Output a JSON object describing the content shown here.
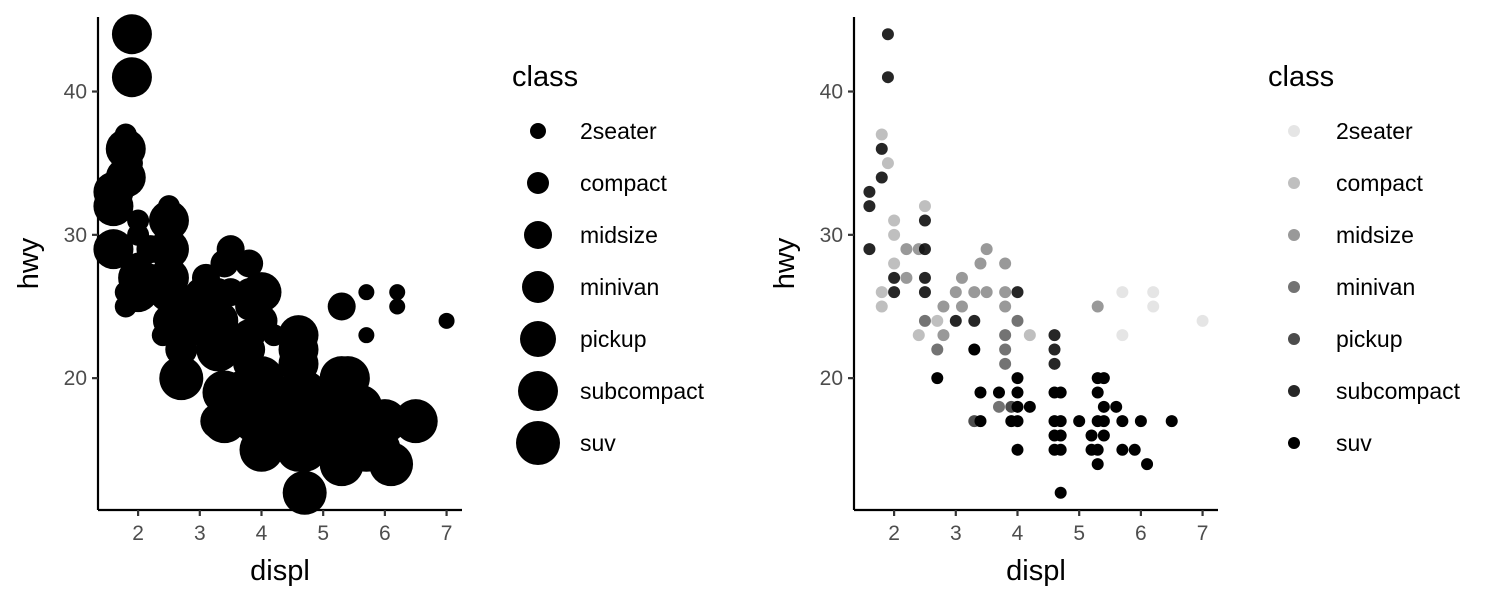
{
  "chart_data": [
    {
      "type": "scatter",
      "title": "",
      "xlabel": "displ",
      "ylabel": "hwy",
      "xlim": [
        1.35,
        7.25
      ],
      "ylim": [
        10.8,
        45.2
      ],
      "xticks": [
        2,
        3,
        4,
        5,
        6,
        7
      ],
      "yticks": [
        20,
        30,
        40
      ],
      "grid": false,
      "size_by": "class",
      "legend": {
        "title": "class",
        "position": "right",
        "entries": [
          "2seater",
          "compact",
          "midsize",
          "minivan",
          "pickup",
          "subcompact",
          "suv"
        ]
      },
      "color": "#000000",
      "points": [
        {
          "x": 1.9,
          "y": 44,
          "class": "subcompact"
        },
        {
          "x": 1.9,
          "y": 41,
          "class": "subcompact"
        },
        {
          "x": 1.8,
          "y": 37,
          "class": "compact"
        },
        {
          "x": 1.8,
          "y": 36,
          "class": "subcompact"
        },
        {
          "x": 1.9,
          "y": 35,
          "class": "compact"
        },
        {
          "x": 1.8,
          "y": 34,
          "class": "subcompact"
        },
        {
          "x": 1.6,
          "y": 33,
          "class": "subcompact"
        },
        {
          "x": 1.6,
          "y": 32,
          "class": "subcompact"
        },
        {
          "x": 2.0,
          "y": 31,
          "class": "compact"
        },
        {
          "x": 2.5,
          "y": 32,
          "class": "compact"
        },
        {
          "x": 2.5,
          "y": 31,
          "class": "subcompact"
        },
        {
          "x": 1.6,
          "y": 29,
          "class": "subcompact"
        },
        {
          "x": 2.0,
          "y": 30,
          "class": "compact"
        },
        {
          "x": 2.4,
          "y": 29,
          "class": "midsize"
        },
        {
          "x": 2.2,
          "y": 29,
          "class": "midsize"
        },
        {
          "x": 2.5,
          "y": 29,
          "class": "subcompact"
        },
        {
          "x": 3.5,
          "y": 29,
          "class": "midsize"
        },
        {
          "x": 2.0,
          "y": 28,
          "class": "compact"
        },
        {
          "x": 3.4,
          "y": 28,
          "class": "midsize"
        },
        {
          "x": 3.8,
          "y": 28,
          "class": "midsize"
        },
        {
          "x": 2.0,
          "y": 27,
          "class": "subcompact"
        },
        {
          "x": 2.2,
          "y": 27,
          "class": "midsize"
        },
        {
          "x": 2.5,
          "y": 27,
          "class": "subcompact"
        },
        {
          "x": 3.1,
          "y": 27,
          "class": "midsize"
        },
        {
          "x": 1.8,
          "y": 26,
          "class": "compact"
        },
        {
          "x": 2.0,
          "y": 26,
          "class": "subcompact"
        },
        {
          "x": 2.5,
          "y": 26,
          "class": "subcompact"
        },
        {
          "x": 3.0,
          "y": 26,
          "class": "midsize"
        },
        {
          "x": 3.3,
          "y": 26,
          "class": "midsize"
        },
        {
          "x": 3.5,
          "y": 26,
          "class": "midsize"
        },
        {
          "x": 3.8,
          "y": 26,
          "class": "midsize"
        },
        {
          "x": 4.0,
          "y": 26,
          "class": "subcompact"
        },
        {
          "x": 5.7,
          "y": 26,
          "class": "2seater"
        },
        {
          "x": 6.2,
          "y": 26,
          "class": "2seater"
        },
        {
          "x": 1.8,
          "y": 25,
          "class": "compact"
        },
        {
          "x": 2.8,
          "y": 25,
          "class": "midsize"
        },
        {
          "x": 3.1,
          "y": 25,
          "class": "midsize"
        },
        {
          "x": 3.8,
          "y": 25,
          "class": "midsize"
        },
        {
          "x": 5.3,
          "y": 25,
          "class": "midsize"
        },
        {
          "x": 6.2,
          "y": 25,
          "class": "2seater"
        },
        {
          "x": 2.5,
          "y": 24,
          "class": "minivan"
        },
        {
          "x": 2.7,
          "y": 24,
          "class": "compact"
        },
        {
          "x": 3.0,
          "y": 24,
          "class": "subcompact"
        },
        {
          "x": 3.3,
          "y": 24,
          "class": "subcompact"
        },
        {
          "x": 4.0,
          "y": 24,
          "class": "minivan"
        },
        {
          "x": 7.0,
          "y": 24,
          "class": "2seater"
        },
        {
          "x": 2.4,
          "y": 23,
          "class": "compact"
        },
        {
          "x": 2.8,
          "y": 23,
          "class": "midsize"
        },
        {
          "x": 3.8,
          "y": 23,
          "class": "minivan"
        },
        {
          "x": 4.2,
          "y": 23,
          "class": "compact"
        },
        {
          "x": 4.6,
          "y": 23,
          "class": "subcompact"
        },
        {
          "x": 5.7,
          "y": 23,
          "class": "2seater"
        },
        {
          "x": 2.7,
          "y": 22,
          "class": "minivan"
        },
        {
          "x": 3.3,
          "y": 22,
          "class": "suv"
        },
        {
          "x": 3.8,
          "y": 22,
          "class": "minivan"
        },
        {
          "x": 4.6,
          "y": 22,
          "class": "subcompact"
        },
        {
          "x": 3.8,
          "y": 21,
          "class": "minivan"
        },
        {
          "x": 4.6,
          "y": 21,
          "class": "subcompact"
        },
        {
          "x": 2.7,
          "y": 20,
          "class": "suv"
        },
        {
          "x": 4.0,
          "y": 20,
          "class": "suv"
        },
        {
          "x": 5.3,
          "y": 20,
          "class": "suv"
        },
        {
          "x": 5.4,
          "y": 20,
          "class": "suv"
        },
        {
          "x": 3.4,
          "y": 19,
          "class": "suv"
        },
        {
          "x": 3.7,
          "y": 19,
          "class": "suv"
        },
        {
          "x": 4.0,
          "y": 19,
          "class": "suv"
        },
        {
          "x": 4.6,
          "y": 19,
          "class": "suv"
        },
        {
          "x": 4.7,
          "y": 19,
          "class": "suv"
        },
        {
          "x": 5.3,
          "y": 19,
          "class": "suv"
        },
        {
          "x": 3.7,
          "y": 18,
          "class": "minivan"
        },
        {
          "x": 3.9,
          "y": 18,
          "class": "pickup"
        },
        {
          "x": 4.0,
          "y": 18,
          "class": "suv"
        },
        {
          "x": 4.2,
          "y": 18,
          "class": "suv"
        },
        {
          "x": 5.4,
          "y": 18,
          "class": "suv"
        },
        {
          "x": 5.6,
          "y": 18,
          "class": "suv"
        },
        {
          "x": 3.3,
          "y": 17,
          "class": "pickup"
        },
        {
          "x": 3.4,
          "y": 17,
          "class": "suv"
        },
        {
          "x": 3.9,
          "y": 17,
          "class": "suv"
        },
        {
          "x": 4.0,
          "y": 17,
          "class": "suv"
        },
        {
          "x": 4.6,
          "y": 17,
          "class": "suv"
        },
        {
          "x": 4.7,
          "y": 17,
          "class": "suv"
        },
        {
          "x": 5.0,
          "y": 17,
          "class": "suv"
        },
        {
          "x": 5.3,
          "y": 17,
          "class": "suv"
        },
        {
          "x": 5.4,
          "y": 17,
          "class": "suv"
        },
        {
          "x": 5.7,
          "y": 17,
          "class": "suv"
        },
        {
          "x": 6.0,
          "y": 17,
          "class": "suv"
        },
        {
          "x": 6.5,
          "y": 17,
          "class": "suv"
        },
        {
          "x": 4.6,
          "y": 16,
          "class": "suv"
        },
        {
          "x": 4.7,
          "y": 16,
          "class": "suv"
        },
        {
          "x": 5.2,
          "y": 16,
          "class": "suv"
        },
        {
          "x": 5.4,
          "y": 16,
          "class": "suv"
        },
        {
          "x": 4.0,
          "y": 15,
          "class": "suv"
        },
        {
          "x": 4.6,
          "y": 15,
          "class": "suv"
        },
        {
          "x": 4.7,
          "y": 15,
          "class": "suv"
        },
        {
          "x": 5.2,
          "y": 15,
          "class": "suv"
        },
        {
          "x": 5.3,
          "y": 15,
          "class": "suv"
        },
        {
          "x": 5.7,
          "y": 15,
          "class": "suv"
        },
        {
          "x": 5.9,
          "y": 15,
          "class": "suv"
        },
        {
          "x": 5.3,
          "y": 14,
          "class": "suv"
        },
        {
          "x": 6.1,
          "y": 14,
          "class": "suv"
        },
        {
          "x": 4.7,
          "y": 12,
          "class": "suv"
        }
      ]
    },
    {
      "type": "scatter",
      "title": "",
      "xlabel": "displ",
      "ylabel": "hwy",
      "xlim": [
        1.35,
        7.25
      ],
      "ylim": [
        10.8,
        45.2
      ],
      "xticks": [
        2,
        3,
        4,
        5,
        6,
        7
      ],
      "yticks": [
        20,
        30,
        40
      ],
      "grid": false,
      "alpha_by": "class",
      "legend": {
        "title": "class",
        "position": "right",
        "entries": [
          "2seater",
          "compact",
          "midsize",
          "minivan",
          "pickup",
          "subcompact",
          "suv"
        ]
      },
      "color": "#000000",
      "points_ref": "same as chart 1"
    }
  ],
  "styles": {
    "sizes_by_class": {
      "2seater": 8,
      "compact": 11,
      "midsize": 14,
      "minivan": 16,
      "pickup": 18,
      "subcompact": 20,
      "suv": 22
    },
    "alpha_by_class": {
      "2seater": 0.1,
      "compact": 0.25,
      "midsize": 0.4,
      "minivan": 0.55,
      "pickup": 0.7,
      "subcompact": 0.85,
      "suv": 1.0
    }
  }
}
